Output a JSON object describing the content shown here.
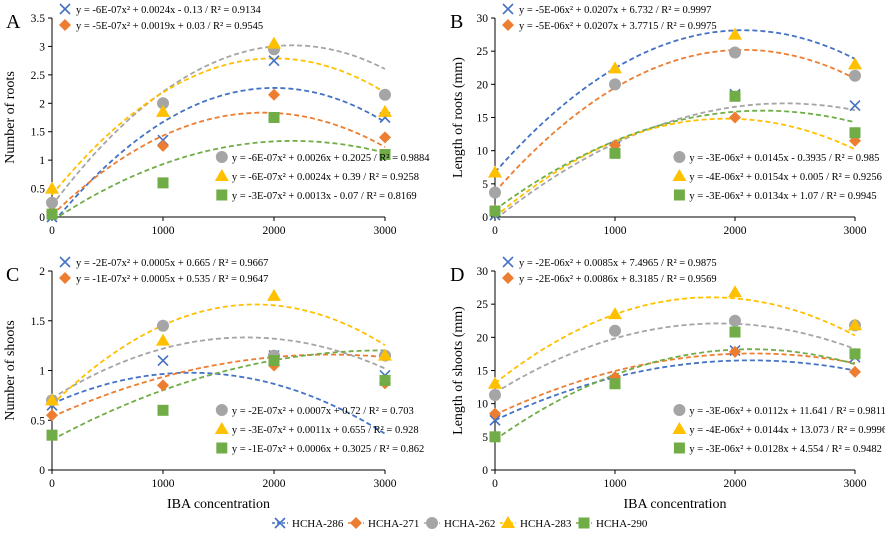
{
  "styles": {
    "HCHA-286": {
      "color": "#4472C4",
      "marker": "x"
    },
    "HCHA-271": {
      "color": "#ED7D31",
      "marker": "diamond"
    },
    "HCHA-262": {
      "color": "#A5A5A5",
      "marker": "circle"
    },
    "HCHA-283": {
      "color": "#FFC000",
      "marker": "triangle"
    },
    "HCHA-290": {
      "color": "#70AD47",
      "marker": "square"
    }
  },
  "legend": [
    "HCHA-286",
    "HCHA-271",
    "HCHA-262",
    "HCHA-283",
    "HCHA-290"
  ],
  "chart_data": [
    {
      "type": "scatter",
      "panel": "A",
      "xlabel": "",
      "ylabel": "Number of roots",
      "x": [
        0,
        1000,
        2000,
        3000
      ],
      "xlim": [
        0,
        3000
      ],
      "ylim": [
        0,
        3.5
      ],
      "yticks": [
        "0",
        "0.5",
        "1",
        "1.5",
        "2",
        "2.5",
        "3",
        "3.5"
      ],
      "series": [
        {
          "name": "HCHA-286",
          "values": [
            0,
            1.35,
            2.75,
            1.75
          ],
          "trend": [
            -6e-07,
            0.0024,
            -0.13
          ]
        },
        {
          "name": "HCHA-271",
          "values": [
            0.1,
            1.25,
            2.15,
            1.4
          ],
          "trend": [
            -5e-07,
            0.0019,
            0.03
          ]
        },
        {
          "name": "HCHA-262",
          "values": [
            0.25,
            2.0,
            2.95,
            2.15
          ],
          "trend": [
            -6e-07,
            0.0026,
            0.2025
          ]
        },
        {
          "name": "HCHA-283",
          "values": [
            0.5,
            1.85,
            3.05,
            1.85
          ],
          "trend": [
            -6e-07,
            0.0024,
            0.39
          ]
        },
        {
          "name": "HCHA-290",
          "values": [
            0.05,
            0.6,
            1.75,
            1.1
          ],
          "trend": [
            -3e-07,
            0.0013,
            -0.07
          ]
        }
      ],
      "equations_top": [
        {
          "series": "HCHA-286",
          "text": "y = -6E-07x² + 0.0024x  - 0.13 / R² = 0.9134"
        },
        {
          "series": "HCHA-271",
          "text": "y = -5E-07x² + 0.0019x + 0.03 / R² = 0.9545"
        }
      ],
      "equations_bottom": [
        {
          "series": "HCHA-262",
          "text": "y = -6E-07x² + 0.0026x + 0.2025 / R² = 0.9884"
        },
        {
          "series": "HCHA-283",
          "text": "y = -6E-07x² + 0.0024x + 0.39 / R² = 0.9258"
        },
        {
          "series": "HCHA-290",
          "text": "y = -3E-07x² + 0.0013x  - 0.07 / R² = 0.8169"
        }
      ]
    },
    {
      "type": "scatter",
      "panel": "B",
      "xlabel": "",
      "ylabel": "Length of roots (mm)",
      "x": [
        0,
        1000,
        2000,
        3000
      ],
      "xlim": [
        0,
        3000
      ],
      "ylim": [
        0,
        30
      ],
      "yticks": [
        "0",
        "5",
        "10",
        "15",
        "20",
        "25",
        "30"
      ],
      "series": [
        {
          "name": "HCHA-286",
          "values": [
            0.3,
            10.5,
            18.5,
            16.8
          ],
          "trend": [
            -5e-06,
            0.0207,
            6.732
          ]
        },
        {
          "name": "HCHA-271",
          "values": [
            1.0,
            10.8,
            15.0,
            11.5
          ],
          "trend": [
            -5e-06,
            0.0207,
            3.7715
          ]
        },
        {
          "name": "HCHA-262",
          "values": [
            3.7,
            20.0,
            24.8,
            21.3
          ],
          "trend": [
            -3e-06,
            0.0145,
            -0.3935
          ]
        },
        {
          "name": "HCHA-283",
          "values": [
            6.7,
            22.4,
            27.5,
            23.0
          ],
          "trend": [
            -4e-06,
            0.0154,
            0.005
          ]
        },
        {
          "name": "HCHA-290",
          "values": [
            0.9,
            9.6,
            18.2,
            12.7
          ],
          "trend": [
            -3e-06,
            0.0134,
            1.07
          ]
        }
      ],
      "equations_top": [
        {
          "series": "HCHA-286",
          "text": "y = -5E-06x² + 0.0207x + 6.732 / R² = 0.9997"
        },
        {
          "series": "HCHA-271",
          "text": "y = -5E-06x² + 0.0207x + 3.7715 / R² = 0.9975"
        }
      ],
      "equations_bottom": [
        {
          "series": "HCHA-262",
          "text": "y = -3E-06x² + 0.0145x  - 0.3935 / R² = 0.985"
        },
        {
          "series": "HCHA-283",
          "text": "y = -4E-06x² + 0.0154x + 0.005 / R² = 0.9256"
        },
        {
          "series": "HCHA-290",
          "text": "y = -3E-06x² + 0.0134x + 1.07 / R² = 0.9945"
        }
      ]
    },
    {
      "type": "scatter",
      "panel": "C",
      "xlabel": "IBA concentration",
      "ylabel": "Number of shoots",
      "x": [
        0,
        1000,
        2000,
        3000
      ],
      "xlim": [
        0,
        3000
      ],
      "ylim": [
        0,
        2
      ],
      "yticks": [
        "0",
        "0.5",
        "1",
        "1.5",
        "2"
      ],
      "series": [
        {
          "name": "HCHA-286",
          "values": [
            0.65,
            1.1,
            1.15,
            0.95
          ],
          "trend": [
            -2e-07,
            0.0005,
            0.665
          ]
        },
        {
          "name": "HCHA-271",
          "values": [
            0.55,
            0.85,
            1.05,
            0.87
          ],
          "trend": [
            -1e-07,
            0.0005,
            0.535
          ]
        },
        {
          "name": "HCHA-262",
          "values": [
            0.7,
            1.45,
            1.15,
            1.15
          ],
          "trend": [
            -2e-07,
            0.0007,
            0.72
          ]
        },
        {
          "name": "HCHA-283",
          "values": [
            0.7,
            1.3,
            1.75,
            1.15
          ],
          "trend": [
            -3e-07,
            0.0011,
            0.655
          ]
        },
        {
          "name": "HCHA-290",
          "values": [
            0.35,
            0.6,
            1.1,
            0.9
          ],
          "trend": [
            -1e-07,
            0.0006,
            0.3025
          ]
        }
      ],
      "equations_top": [
        {
          "series": "HCHA-286",
          "text": "y = -2E-07x² + 0.0005x + 0.665 / R² = 0.9667"
        },
        {
          "series": "HCHA-271",
          "text": "y = -1E-07x² + 0.0005x + 0.535 / R² = 0.9647"
        }
      ],
      "equations_bottom": [
        {
          "series": "HCHA-262",
          "text": "y = -2E-07x² + 0.0007x + 0.72 / R² = 0.703"
        },
        {
          "series": "HCHA-283",
          "text": "y = -3E-07x² + 0.0011x + 0.655 / R² = 0.928"
        },
        {
          "series": "HCHA-290",
          "text": "y = -1E-07x² + 0.0006x + 0.3025 / R² = 0.862"
        }
      ]
    },
    {
      "type": "scatter",
      "panel": "D",
      "xlabel": "IBA concentration",
      "ylabel": "Length of shoots (mm)",
      "x": [
        0,
        1000,
        2000,
        3000
      ],
      "xlim": [
        0,
        3000
      ],
      "ylim": [
        0,
        30
      ],
      "yticks": [
        "0",
        "5",
        "10",
        "15",
        "20",
        "25",
        "30"
      ],
      "series": [
        {
          "name": "HCHA-286",
          "values": [
            7.5,
            13.5,
            18.0,
            17.0
          ],
          "trend": [
            -2e-06,
            0.0085,
            7.4965
          ]
        },
        {
          "name": "HCHA-271",
          "values": [
            8.5,
            14.0,
            17.8,
            14.8
          ],
          "trend": [
            -2e-06,
            0.0086,
            8.3185
          ]
        },
        {
          "name": "HCHA-262",
          "values": [
            11.3,
            21.0,
            22.5,
            21.8
          ],
          "trend": [
            -3e-06,
            0.0112,
            11.641
          ]
        },
        {
          "name": "HCHA-283",
          "values": [
            13.0,
            23.5,
            26.8,
            21.8
          ],
          "trend": [
            -4e-06,
            0.0144,
            13.073
          ]
        },
        {
          "name": "HCHA-290",
          "values": [
            5.0,
            13.0,
            20.8,
            17.5
          ],
          "trend": [
            -3e-06,
            0.0128,
            4.554
          ]
        }
      ],
      "equations_top": [
        {
          "series": "HCHA-286",
          "text": "y = -2E-06x² + 0.0085x + 7.4965 / R² = 0.9875"
        },
        {
          "series": "HCHA-271",
          "text": "y = -2E-06x² + 0.0086x + 8.3185 / R² = 0.9569"
        }
      ],
      "equations_bottom": [
        {
          "series": "HCHA-262",
          "text": "y = -3E-06x² + 0.0112x + 11.641 / R² = 0.9811"
        },
        {
          "series": "HCHA-283",
          "text": "y = -4E-06x² + 0.0144x + 13.073 / R² = 0.9996"
        },
        {
          "series": "HCHA-290",
          "text": "y = -3E-06x² + 0.0128x + 4.554 / R² = 0.9482"
        }
      ]
    }
  ]
}
